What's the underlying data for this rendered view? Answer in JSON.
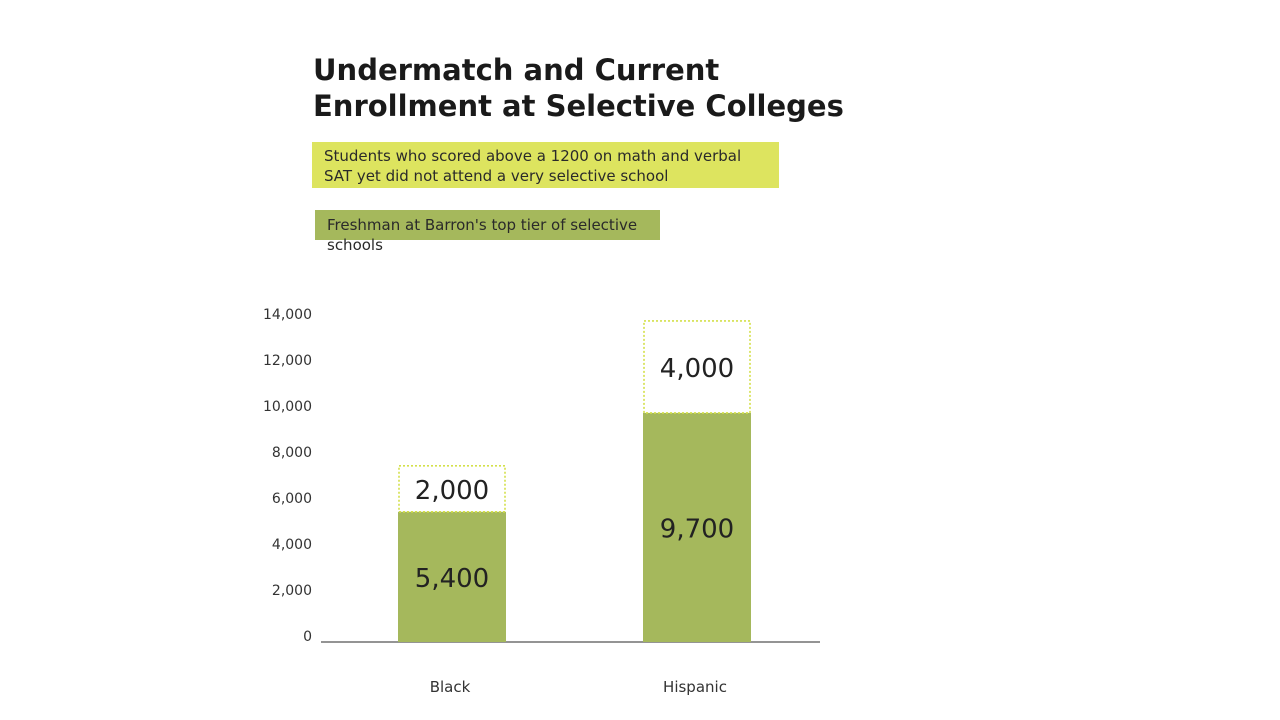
{
  "chart_data": {
    "type": "bar",
    "stacked": true,
    "title": "Undermatch and Current Enrollment at Selective Colleges",
    "categories": [
      "Black",
      "Hispanic"
    ],
    "series": [
      {
        "name": "Freshman at Barron's top tier of selective schools",
        "values": [
          5400,
          9700
        ],
        "labels": [
          "5,400",
          "9,700"
        ],
        "color": "#a5b85c",
        "style": "solid"
      },
      {
        "name": "Students who scored above a 1200 on math and verbal SAT yet did not attend a very selective school",
        "values": [
          2000,
          4000
        ],
        "labels": [
          "2,000",
          "4,000"
        ],
        "color": "#d4e04a",
        "style": "dotted-outline"
      }
    ],
    "ylim": [
      0,
      14000
    ],
    "yticks": [
      0,
      2000,
      4000,
      6000,
      8000,
      10000,
      12000,
      14000
    ],
    "ytick_labels": [
      "0",
      "2,000",
      "4,000",
      "6,000",
      "8,000",
      "10,000",
      "12,000",
      "14,000"
    ],
    "xlabel": "",
    "ylabel": "",
    "grid": false
  }
}
